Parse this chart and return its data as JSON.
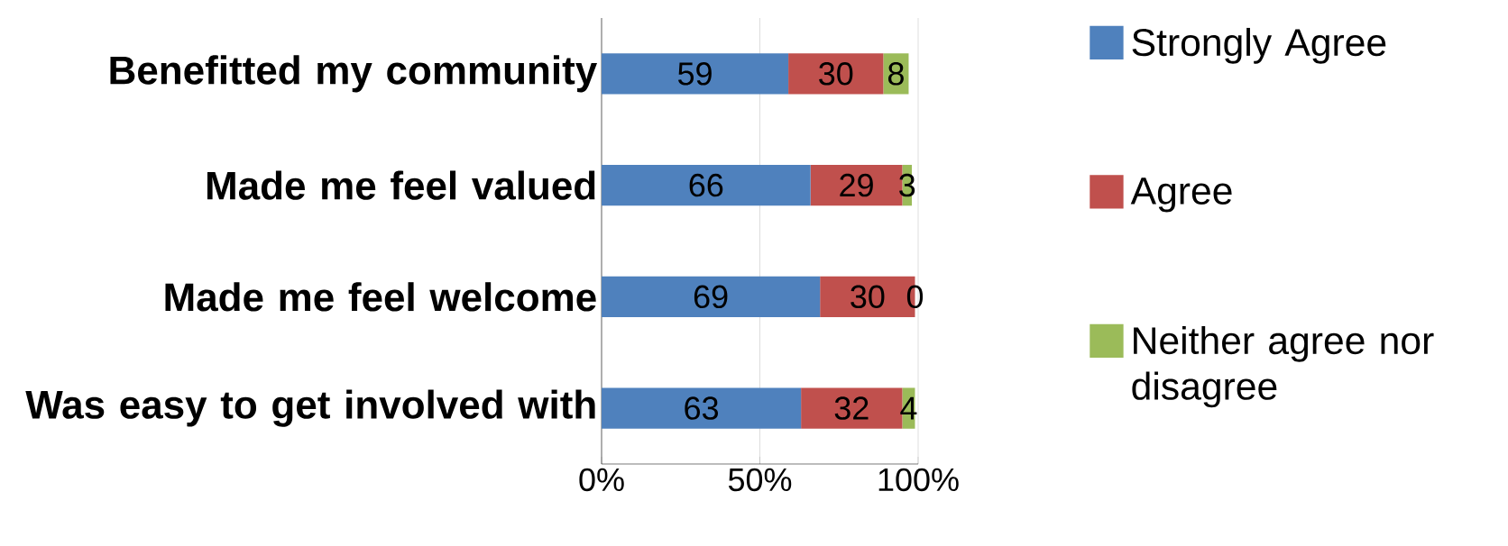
{
  "chart_data": {
    "type": "bar",
    "orientation": "horizontal",
    "stacked": true,
    "categories": [
      "Benefitted my community",
      "Made me feel valued",
      "Made me feel welcome",
      "Was easy to get involved with"
    ],
    "series": [
      {
        "name": "Strongly Agree",
        "color": "#4f81bd",
        "values": [
          59,
          66,
          69,
          63
        ]
      },
      {
        "name": "Agree",
        "color": "#c0504d",
        "values": [
          30,
          29,
          30,
          32
        ]
      },
      {
        "name": "Neither agree nor disagree",
        "color": "#9bbb59",
        "values": [
          8,
          3,
          0,
          4
        ]
      }
    ],
    "xlim": [
      0,
      100
    ],
    "xticks": [
      {
        "value": 0,
        "label": "0%"
      },
      {
        "value": 50,
        "label": "50%"
      },
      {
        "value": 100,
        "label": "100%"
      }
    ],
    "grid": "x",
    "legend": "right",
    "data_labels": true
  }
}
